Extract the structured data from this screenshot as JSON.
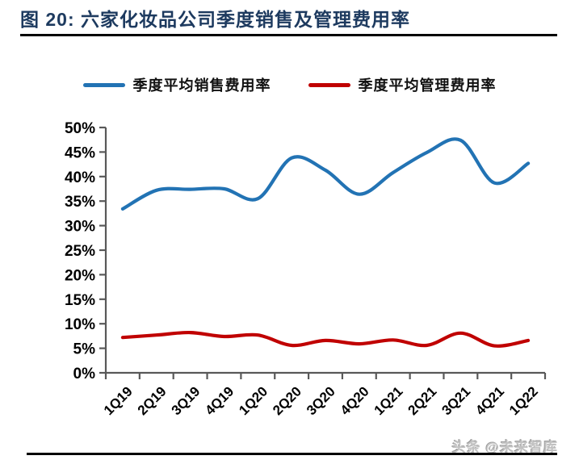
{
  "figure": {
    "title": "图 20: 六家化妆品公司季度销售及管理费用率",
    "watermark": "头条 @未来智库"
  },
  "colors": {
    "title_navy": "#1d3a5f",
    "sales_line_blue": "#2273B4",
    "admin_line_red": "#C00000",
    "axis_gray": "#595959",
    "divider_black": "#000000"
  },
  "legend": [
    {
      "label": "季度平均销售费用率",
      "color": "#2273B4"
    },
    {
      "label": "季度平均管理费用率",
      "color": "#C00000"
    }
  ],
  "chart_data": {
    "type": "line",
    "title": "六家化妆品公司季度销售及管理费用率",
    "categories": [
      "1Q19",
      "2Q19",
      "3Q19",
      "4Q19",
      "1Q20",
      "2Q20",
      "3Q20",
      "4Q20",
      "1Q21",
      "2Q21",
      "3Q21",
      "4Q21",
      "1Q22"
    ],
    "series": [
      {
        "name": "季度平均销售费用率",
        "color": "#2273B4",
        "values": [
          33.4,
          37.2,
          37.4,
          37.5,
          35.5,
          43.8,
          41.3,
          36.4,
          40.8,
          44.9,
          47.4,
          38.7,
          42.7
        ]
      },
      {
        "name": "季度平均管理费用率",
        "color": "#C00000",
        "values": [
          7.2,
          7.7,
          8.2,
          7.4,
          7.7,
          5.6,
          6.6,
          5.9,
          6.7,
          5.6,
          8.1,
          5.5,
          6.6
        ]
      }
    ],
    "xlabel": "",
    "ylabel": "",
    "ylim": [
      0,
      50
    ],
    "ytick_step": 5,
    "ytick_labels": [
      "0%",
      "5%",
      "10%",
      "15%",
      "20%",
      "25%",
      "30%",
      "35%",
      "40%",
      "45%",
      "50%"
    ],
    "grid": false,
    "smooth": true,
    "legend_position": "top",
    "x_label_rotation": -45
  }
}
